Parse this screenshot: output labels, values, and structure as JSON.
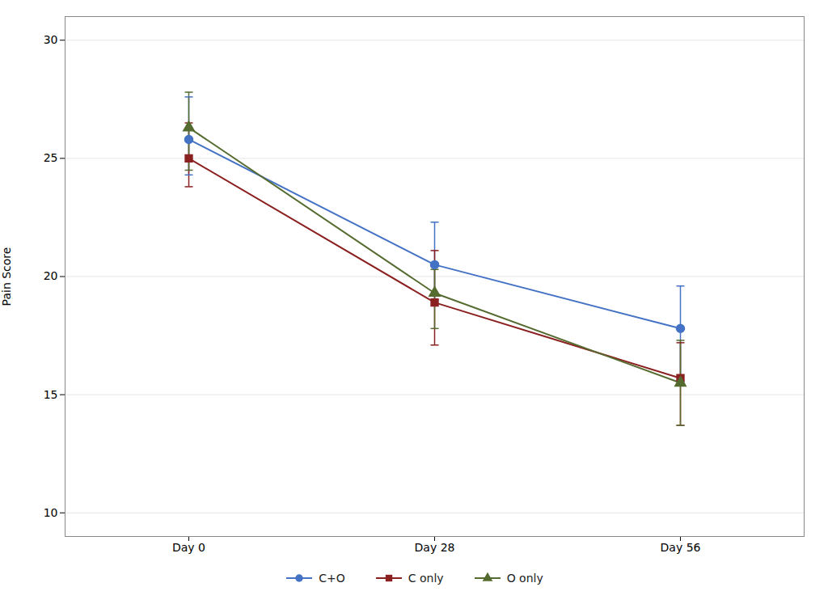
{
  "chart_data": {
    "type": "line",
    "categories": [
      "Day 0",
      "Day 28",
      "Day 56"
    ],
    "ylabel": "Pain Score",
    "ylim": [
      9,
      31
    ],
    "yticks": [
      10,
      15,
      20,
      25,
      30
    ],
    "grid": true,
    "legend": "bottom",
    "series": [
      {
        "name": "C+O",
        "color": "#4472C4",
        "marker": "circle",
        "values": [
          25.8,
          20.5,
          17.8
        ],
        "error_lower": [
          1.5,
          1.5,
          2.2
        ],
        "error_upper": [
          1.8,
          1.8,
          1.8
        ]
      },
      {
        "name": "C only",
        "color": "#8B2020",
        "marker": "square",
        "values": [
          25.0,
          18.9,
          15.7
        ],
        "error_lower": [
          1.2,
          1.8,
          2.0
        ],
        "error_upper": [
          1.5,
          2.2,
          1.5
        ]
      },
      {
        "name": "O only",
        "color": "#556B2F",
        "marker": "triangle",
        "values": [
          26.3,
          19.3,
          15.5
        ],
        "error_lower": [
          1.8,
          1.5,
          1.8
        ],
        "error_upper": [
          1.5,
          1.0,
          1.8
        ]
      }
    ]
  }
}
